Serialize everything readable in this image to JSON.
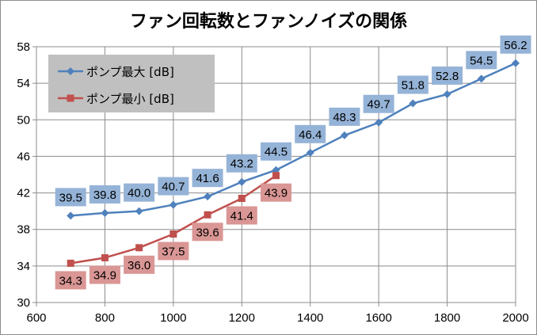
{
  "chart_data": {
    "type": "line",
    "title": "ファン回転数とファンノイズの関係",
    "xlabel": "",
    "ylabel": "",
    "xlim": [
      600,
      2000
    ],
    "ylim": [
      30,
      58
    ],
    "xticks": [
      600,
      800,
      1000,
      1200,
      1400,
      1600,
      1800,
      2000
    ],
    "yticks": [
      30,
      34,
      38,
      42,
      46,
      50,
      54,
      58
    ],
    "grid": true,
    "legend_position": "top-left",
    "series": [
      {
        "name": "ポンプ最大 [dB]",
        "color": "#4f81bd",
        "label_bg": "#95b3d7",
        "marker": "diamond",
        "label_position": "above",
        "x": [
          700,
          800,
          900,
          1000,
          1100,
          1200,
          1300,
          1400,
          1500,
          1600,
          1700,
          1800,
          1900,
          2000
        ],
        "values": [
          39.5,
          39.8,
          40.0,
          40.7,
          41.6,
          43.2,
          44.5,
          46.4,
          48.3,
          49.7,
          51.8,
          52.8,
          54.5,
          56.2
        ],
        "labels": [
          "39.5",
          "39.8",
          "40.0",
          "40.7",
          "41.6",
          "43.2",
          "44.5",
          "46.4",
          "48.3",
          "49.7",
          "51.8",
          "52.8",
          "54.5",
          "56.2"
        ]
      },
      {
        "name": "ポンプ最小 [dB]",
        "color": "#c0504d",
        "label_bg": "#d99694",
        "marker": "square",
        "label_position": "below",
        "x": [
          700,
          800,
          900,
          1000,
          1100,
          1200,
          1300
        ],
        "values": [
          34.3,
          34.9,
          36.0,
          37.5,
          39.6,
          41.4,
          43.9
        ],
        "labels": [
          "34.3",
          "34.9",
          "36.0",
          "37.5",
          "39.6",
          "41.4",
          "43.9"
        ]
      }
    ]
  }
}
